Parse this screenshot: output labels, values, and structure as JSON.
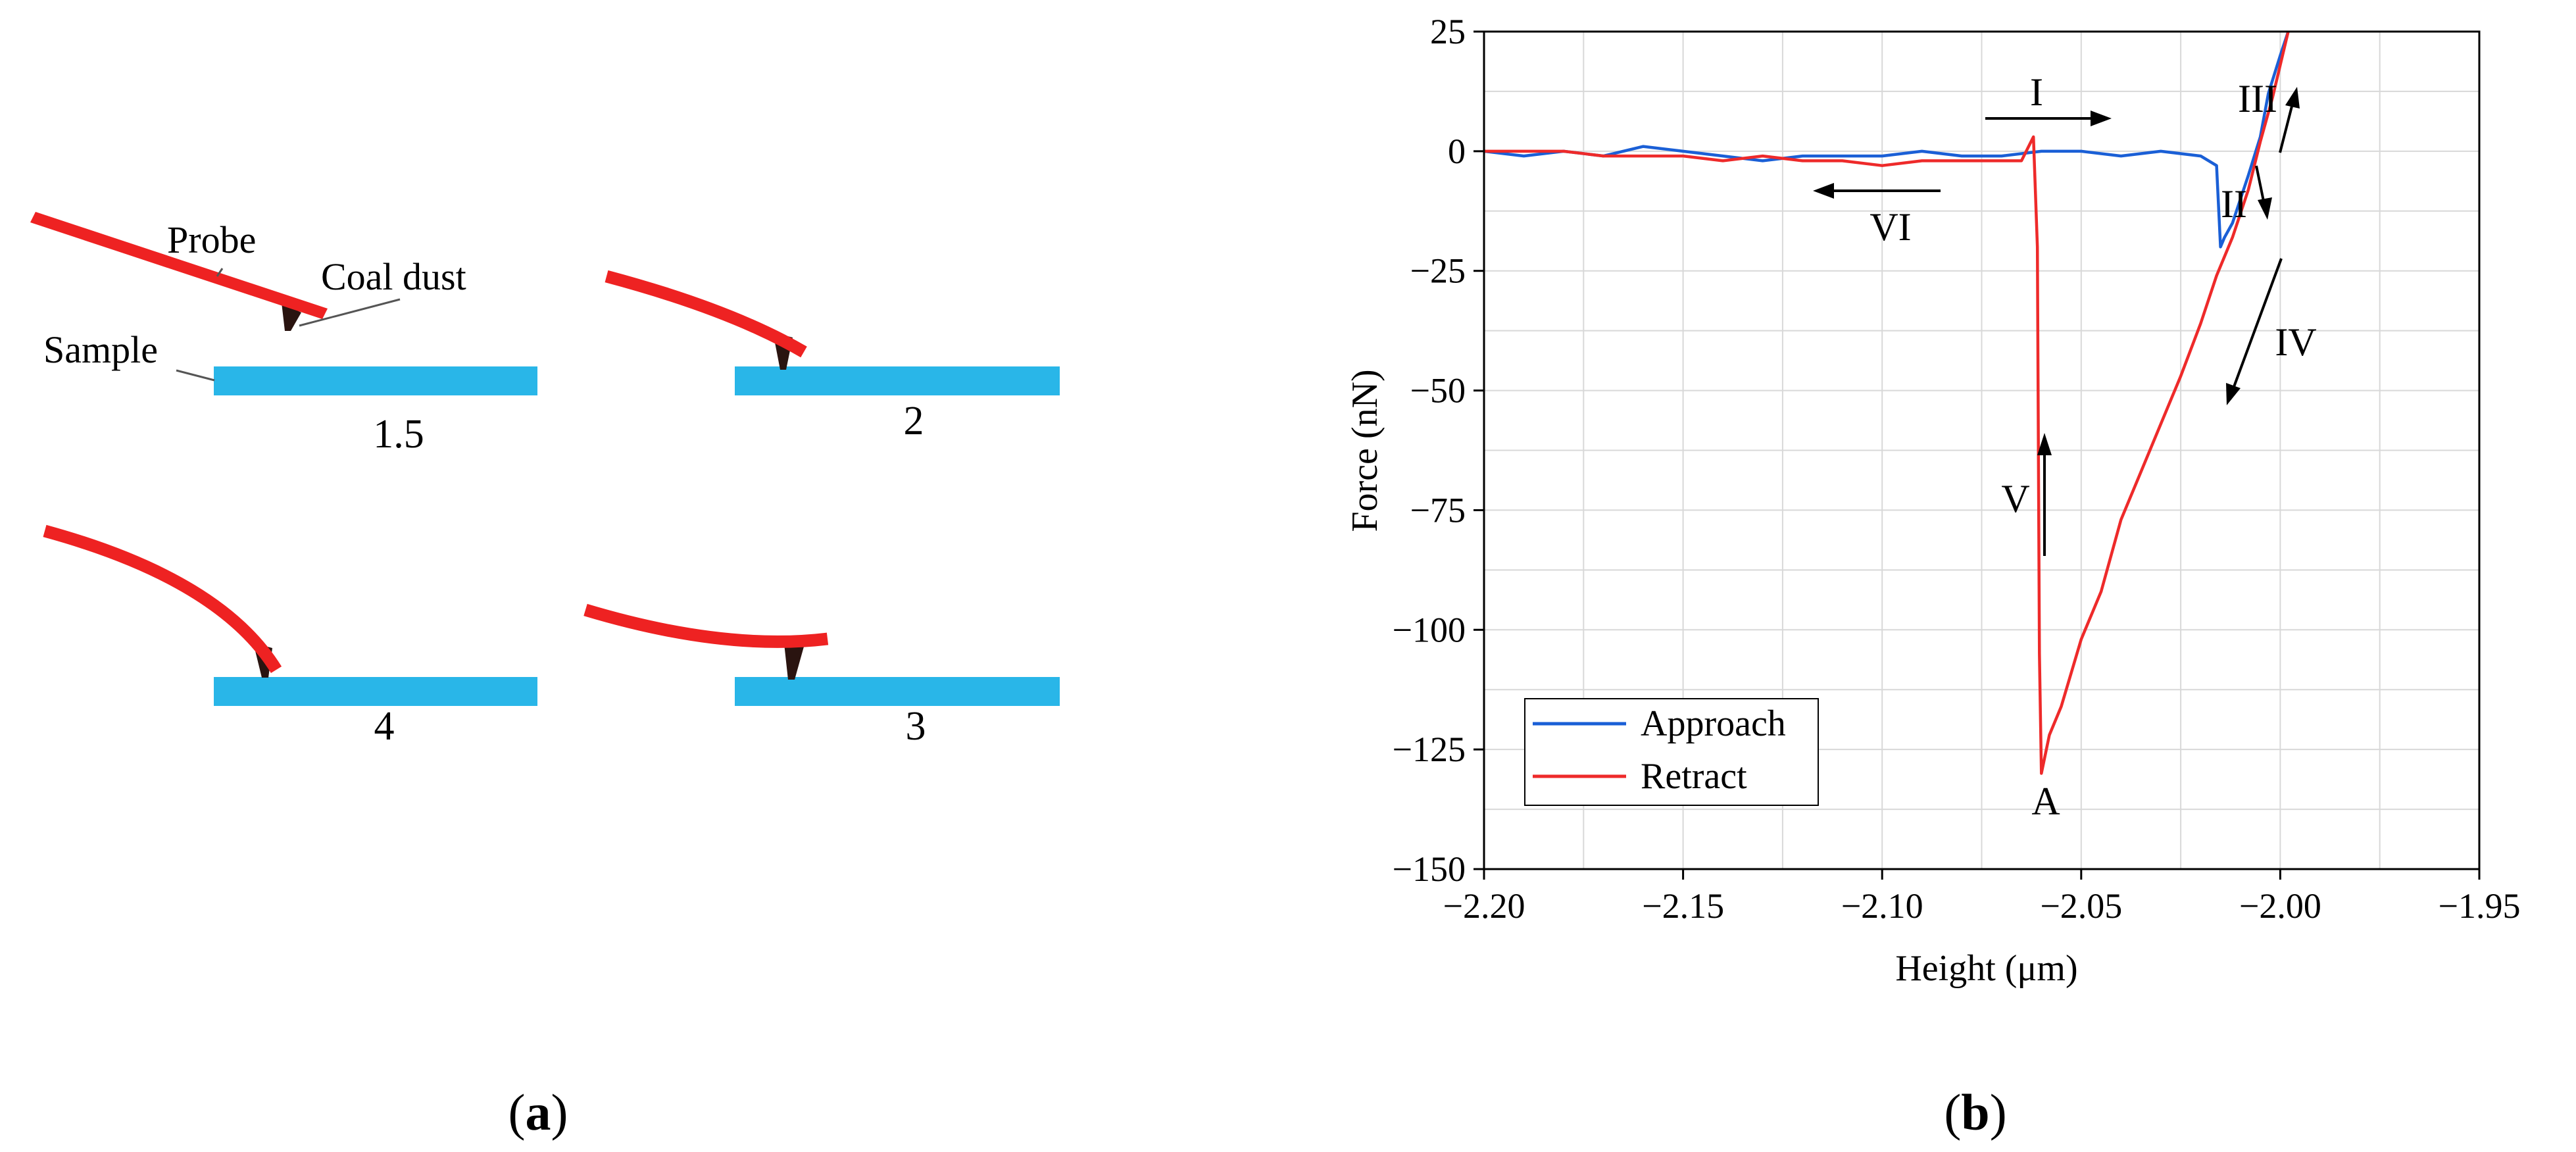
{
  "colors": {
    "probe": "#ee2222",
    "sample": "#29b6e8",
    "tip": "#2a1410",
    "approach": "#1a5fd6",
    "retract": "#ee2a2a",
    "grid": "#d8d8d8"
  },
  "panel_a": {
    "label_open": "(",
    "label_letter": "a",
    "label_close": ")",
    "stages": [
      {
        "label": "1.5",
        "shape": "straight-probe"
      },
      {
        "label": "2",
        "shape": "bent-down"
      },
      {
        "label": "4",
        "shape": "strongly-bent"
      },
      {
        "label": "3",
        "shape": "bent-up"
      }
    ],
    "annotations": {
      "probe": "Probe",
      "coal_dust": "Coal dust",
      "sample": "Sample"
    }
  },
  "panel_b": {
    "label_open": "(",
    "label_letter": "b",
    "label_close": ")",
    "annotations": {
      "I": "I",
      "II": "II",
      "III": "III",
      "IV": "IV",
      "V": "V",
      "VI": "VI",
      "A": "A"
    }
  },
  "chart_data": {
    "type": "line",
    "title": "",
    "xlabel": "Height (μm)",
    "ylabel": "Force (nN)",
    "xlim": [
      -2.2,
      -1.95
    ],
    "ylim": [
      -150,
      25
    ],
    "xticks": [
      -2.2,
      -2.15,
      -2.1,
      -2.05,
      -2.0,
      -1.95
    ],
    "xtick_labels": [
      "−2.20",
      "−2.15",
      "−2.10",
      "−2.05",
      "−2.00",
      "−1.95"
    ],
    "yticks": [
      25,
      0,
      -25,
      -50,
      -75,
      -100,
      -125,
      -150
    ],
    "ytick_labels": [
      "25",
      "0",
      "−25",
      "−50",
      "−75",
      "−100",
      "−125",
      "−150"
    ],
    "grid": true,
    "legend_position": "bottom-left",
    "series": [
      {
        "name": "Approach",
        "x": [
          -2.2,
          -2.19,
          -2.18,
          -2.17,
          -2.16,
          -2.15,
          -2.14,
          -2.13,
          -2.12,
          -2.11,
          -2.1,
          -2.09,
          -2.08,
          -2.07,
          -2.06,
          -2.05,
          -2.04,
          -2.03,
          -2.02,
          -2.016,
          -2.015,
          -2.014,
          -2.012,
          -2.01,
          -2.008,
          -2.005,
          -2.003,
          -2.0,
          -1.998
        ],
        "y": [
          0,
          -1,
          0,
          -1,
          1,
          0,
          -1,
          -2,
          -1,
          -1,
          -1,
          0,
          -1,
          -1,
          0,
          0,
          -1,
          0,
          -1,
          -3,
          -20,
          -18,
          -15,
          -10,
          -5,
          3,
          12,
          20,
          25
        ]
      },
      {
        "name": "Retract",
        "x": [
          -1.998,
          -2.0,
          -2.002,
          -2.005,
          -2.008,
          -2.012,
          -2.016,
          -2.02,
          -2.025,
          -2.03,
          -2.035,
          -2.04,
          -2.045,
          -2.05,
          -2.055,
          -2.058,
          -2.06,
          -2.0605,
          -2.061,
          -2.062,
          -2.065,
          -2.07,
          -2.08,
          -2.09,
          -2.1,
          -2.11,
          -2.12,
          -2.13,
          -2.14,
          -2.15,
          -2.16,
          -2.17,
          -2.18,
          -2.19,
          -2.2
        ],
        "y": [
          25,
          18,
          11,
          2,
          -8,
          -18,
          -26,
          -36,
          -47,
          -57,
          -67,
          -77,
          -92,
          -102,
          -116,
          -122,
          -130,
          -105,
          -20,
          3,
          -2,
          -2,
          -2,
          -2,
          -3,
          -2,
          -2,
          -1,
          -2,
          -1,
          -1,
          -1,
          0,
          0,
          0
        ]
      }
    ]
  }
}
